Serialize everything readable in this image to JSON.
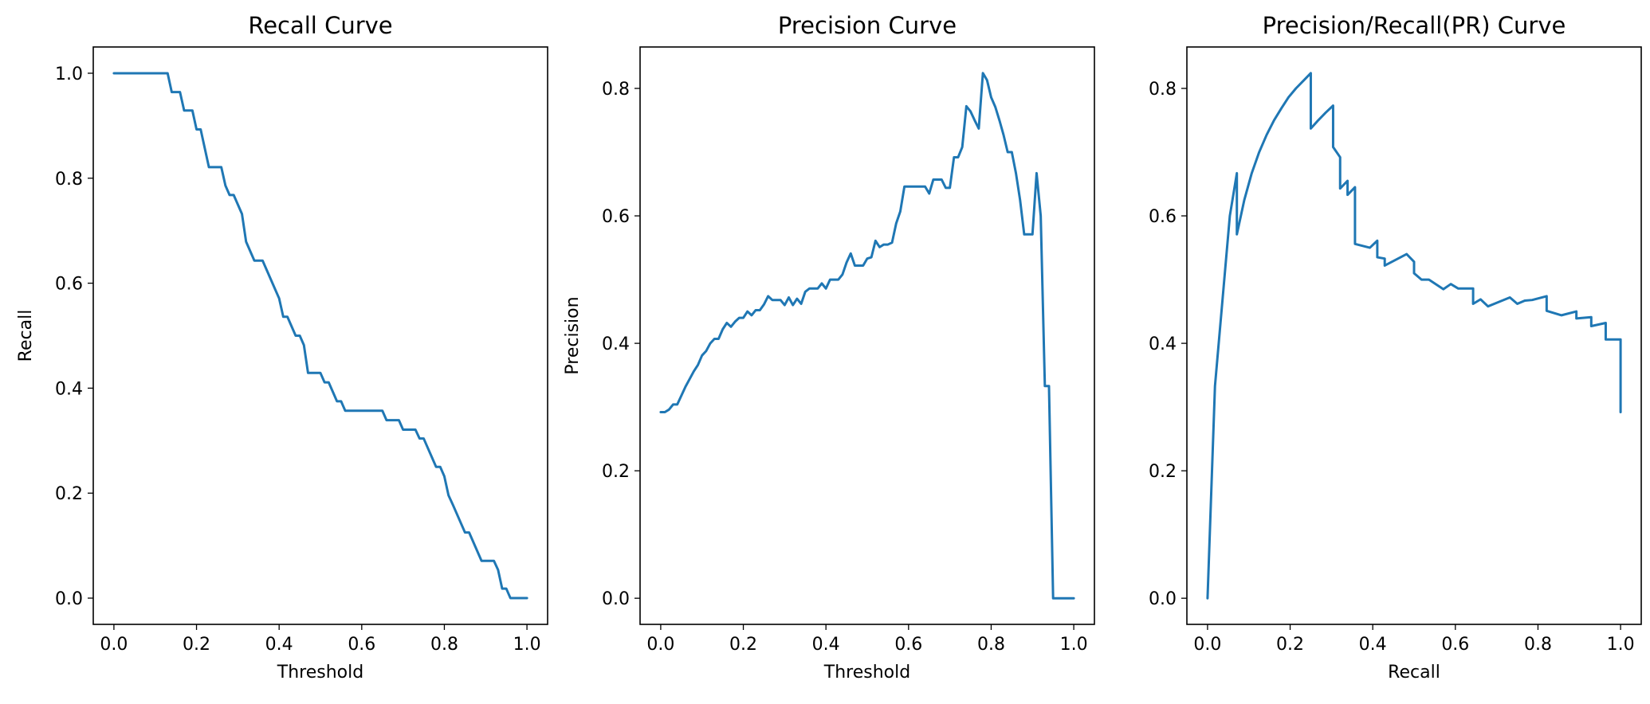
{
  "style": {
    "line_color": "#1f77b4"
  },
  "chart_data": [
    {
      "type": "line",
      "title": "Recall Curve",
      "xlabel": "Threshold",
      "ylabel": "Recall",
      "xlim": [
        -0.05,
        1.05
      ],
      "ylim": [
        -0.05,
        1.05
      ],
      "xticks": [
        0.0,
        0.2,
        0.4,
        0.6,
        0.8,
        1.0
      ],
      "yticks": [
        0.0,
        0.2,
        0.4,
        0.6,
        0.8,
        1.0
      ],
      "xtick_labels": [
        "0.0",
        "0.2",
        "0.4",
        "0.6",
        "0.8",
        "1.0"
      ],
      "ytick_labels": [
        "0.0",
        "0.2",
        "0.4",
        "0.6",
        "0.8",
        "1.0"
      ],
      "series": [
        {
          "x": [
            0.0,
            0.13,
            0.14,
            0.16,
            0.17,
            0.19,
            0.2,
            0.21,
            0.22,
            0.23,
            0.24,
            0.26,
            0.27,
            0.28,
            0.29,
            0.3,
            0.31,
            0.32,
            0.33,
            0.34,
            0.35,
            0.36,
            0.37,
            0.38,
            0.39,
            0.4,
            0.41,
            0.42,
            0.43,
            0.44,
            0.45,
            0.46,
            0.47,
            0.48,
            0.5,
            0.51,
            0.52,
            0.53,
            0.54,
            0.55,
            0.56,
            0.57,
            0.59,
            0.61,
            0.63,
            0.65,
            0.66,
            0.67,
            0.69,
            0.7,
            0.71,
            0.72,
            0.73,
            0.74,
            0.75,
            0.76,
            0.77,
            0.78,
            0.79,
            0.8,
            0.81,
            0.82,
            0.83,
            0.84,
            0.85,
            0.86,
            0.87,
            0.88,
            0.89,
            0.9,
            0.91,
            0.92,
            0.93,
            0.94,
            0.95,
            0.96,
            0.98,
            1.0
          ],
          "y": [
            1.0,
            1.0,
            0.964,
            0.964,
            0.929,
            0.929,
            0.893,
            0.893,
            0.857,
            0.821,
            0.821,
            0.821,
            0.786,
            0.768,
            0.768,
            0.75,
            0.732,
            0.679,
            0.661,
            0.643,
            0.643,
            0.643,
            0.625,
            0.607,
            0.589,
            0.571,
            0.536,
            0.536,
            0.518,
            0.5,
            0.5,
            0.482,
            0.429,
            0.429,
            0.429,
            0.411,
            0.411,
            0.393,
            0.375,
            0.375,
            0.357,
            0.357,
            0.357,
            0.357,
            0.357,
            0.357,
            0.339,
            0.339,
            0.339,
            0.321,
            0.321,
            0.321,
            0.321,
            0.304,
            0.304,
            0.286,
            0.268,
            0.25,
            0.25,
            0.232,
            0.196,
            0.179,
            0.161,
            0.143,
            0.125,
            0.125,
            0.107,
            0.089,
            0.071,
            0.071,
            0.071,
            0.071,
            0.054,
            0.018,
            0.018,
            0.0,
            0.0,
            0.0
          ],
          "color": "#1f77b4"
        }
      ]
    },
    {
      "type": "line",
      "title": "Precision Curve",
      "xlabel": "Threshold",
      "ylabel": "Precision",
      "xlim": [
        -0.05,
        1.05
      ],
      "ylim": [
        -0.041,
        0.865
      ],
      "xticks": [
        0.0,
        0.2,
        0.4,
        0.6,
        0.8,
        1.0
      ],
      "yticks": [
        0.0,
        0.2,
        0.4,
        0.6,
        0.8
      ],
      "xtick_labels": [
        "0.0",
        "0.2",
        "0.4",
        "0.6",
        "0.8",
        "1.0"
      ],
      "ytick_labels": [
        "0.0",
        "0.2",
        "0.4",
        "0.6",
        "0.8"
      ],
      "series": [
        {
          "x": [
            0.0,
            0.01,
            0.02,
            0.03,
            0.04,
            0.05,
            0.06,
            0.07,
            0.08,
            0.09,
            0.1,
            0.11,
            0.12,
            0.13,
            0.14,
            0.15,
            0.16,
            0.17,
            0.18,
            0.19,
            0.2,
            0.21,
            0.22,
            0.23,
            0.24,
            0.25,
            0.26,
            0.27,
            0.28,
            0.29,
            0.3,
            0.31,
            0.32,
            0.33,
            0.34,
            0.35,
            0.36,
            0.37,
            0.38,
            0.39,
            0.4,
            0.41,
            0.42,
            0.43,
            0.44,
            0.45,
            0.46,
            0.47,
            0.48,
            0.49,
            0.5,
            0.51,
            0.52,
            0.53,
            0.54,
            0.55,
            0.56,
            0.57,
            0.58,
            0.59,
            0.6,
            0.61,
            0.62,
            0.63,
            0.64,
            0.65,
            0.66,
            0.67,
            0.68,
            0.69,
            0.7,
            0.71,
            0.72,
            0.73,
            0.74,
            0.75,
            0.76,
            0.77,
            0.78,
            0.79,
            0.8,
            0.81,
            0.82,
            0.83,
            0.84,
            0.85,
            0.86,
            0.87,
            0.88,
            0.89,
            0.9,
            0.91,
            0.92,
            0.93,
            0.94,
            0.95,
            0.96,
            0.97,
            0.98,
            0.99,
            1.0
          ],
          "y": [
            0.292,
            0.292,
            0.296,
            0.304,
            0.304,
            0.318,
            0.332,
            0.344,
            0.356,
            0.366,
            0.381,
            0.388,
            0.4,
            0.407,
            0.407,
            0.422,
            0.432,
            0.426,
            0.434,
            0.44,
            0.44,
            0.45,
            0.444,
            0.452,
            0.452,
            0.461,
            0.474,
            0.468,
            0.468,
            0.468,
            0.46,
            0.472,
            0.46,
            0.47,
            0.462,
            0.481,
            0.486,
            0.486,
            0.486,
            0.494,
            0.486,
            0.5,
            0.5,
            0.5,
            0.508,
            0.527,
            0.541,
            0.522,
            0.522,
            0.522,
            0.533,
            0.535,
            0.561,
            0.551,
            0.555,
            0.555,
            0.558,
            0.588,
            0.607,
            0.646,
            0.646,
            0.646,
            0.646,
            0.646,
            0.646,
            0.635,
            0.657,
            0.657,
            0.657,
            0.644,
            0.644,
            0.692,
            0.692,
            0.708,
            0.772,
            0.764,
            0.75,
            0.737,
            0.824,
            0.813,
            0.786,
            0.771,
            0.75,
            0.727,
            0.7,
            0.7,
            0.667,
            0.625,
            0.571,
            0.571,
            0.571,
            0.667,
            0.6,
            0.333,
            0.333,
            0.0,
            0.0,
            0.0,
            0.0,
            0.0,
            0.0
          ],
          "color": "#1f77b4"
        }
      ]
    },
    {
      "type": "line",
      "title": "Precision/Recall(PR) Curve",
      "xlabel": "Recall",
      "ylabel": "",
      "xlim": [
        -0.05,
        1.05
      ],
      "ylim": [
        -0.041,
        0.865
      ],
      "xticks": [
        0.0,
        0.2,
        0.4,
        0.6,
        0.8,
        1.0
      ],
      "yticks": [
        0.0,
        0.2,
        0.4,
        0.6,
        0.8
      ],
      "xtick_labels": [
        "0.0",
        "0.2",
        "0.4",
        "0.6",
        "0.8",
        "1.0"
      ],
      "ytick_labels": [
        "0.0",
        "0.2",
        "0.4",
        "0.6",
        "0.8"
      ],
      "series": [
        {
          "x": [
            0.0,
            0.018,
            0.054,
            0.071,
            0.071,
            0.089,
            0.107,
            0.125,
            0.143,
            0.161,
            0.179,
            0.196,
            0.214,
            0.232,
            0.25,
            0.25,
            0.268,
            0.286,
            0.304,
            0.304,
            0.321,
            0.321,
            0.339,
            0.339,
            0.357,
            0.357,
            0.375,
            0.393,
            0.411,
            0.411,
            0.429,
            0.429,
            0.482,
            0.5,
            0.5,
            0.518,
            0.536,
            0.536,
            0.571,
            0.589,
            0.607,
            0.625,
            0.643,
            0.643,
            0.661,
            0.679,
            0.732,
            0.75,
            0.768,
            0.786,
            0.821,
            0.821,
            0.857,
            0.893,
            0.893,
            0.929,
            0.929,
            0.964,
            0.964,
            1.0,
            1.0
          ],
          "y": [
            0.0,
            0.333,
            0.6,
            0.667,
            0.571,
            0.625,
            0.667,
            0.7,
            0.727,
            0.75,
            0.769,
            0.786,
            0.8,
            0.812,
            0.824,
            0.737,
            0.75,
            0.762,
            0.773,
            0.708,
            0.692,
            0.643,
            0.655,
            0.633,
            0.645,
            0.556,
            0.553,
            0.55,
            0.561,
            0.535,
            0.533,
            0.522,
            0.54,
            0.528,
            0.51,
            0.5,
            0.5,
            0.5,
            0.485,
            0.493,
            0.486,
            0.486,
            0.486,
            0.462,
            0.469,
            0.458,
            0.472,
            0.462,
            0.467,
            0.468,
            0.474,
            0.451,
            0.444,
            0.45,
            0.439,
            0.441,
            0.427,
            0.432,
            0.406,
            0.406,
            0.292
          ],
          "color": "#1f77b4"
        }
      ]
    }
  ]
}
